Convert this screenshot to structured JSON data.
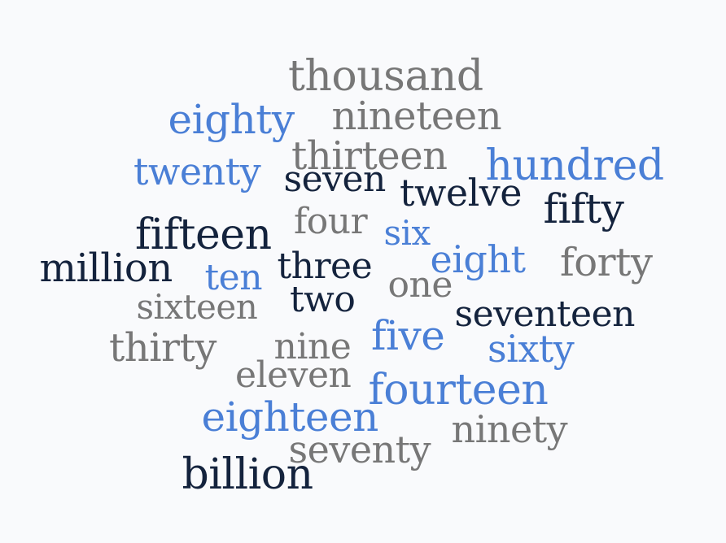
{
  "colors": {
    "gray": "#777777",
    "blue": "#4a7fd6",
    "navy": "#14233d",
    "background": "#f9fafc"
  },
  "words": [
    {
      "text": "thousand",
      "color": "gray"
    },
    {
      "text": "eighty",
      "color": "blue"
    },
    {
      "text": "nineteen",
      "color": "gray"
    },
    {
      "text": "thirteen",
      "color": "gray"
    },
    {
      "text": "hundred",
      "color": "blue"
    },
    {
      "text": "twenty",
      "color": "blue"
    },
    {
      "text": "seven",
      "color": "navy"
    },
    {
      "text": "twelve",
      "color": "navy"
    },
    {
      "text": "fifty",
      "color": "navy"
    },
    {
      "text": "four",
      "color": "gray"
    },
    {
      "text": "six",
      "color": "blue"
    },
    {
      "text": "fifteen",
      "color": "navy"
    },
    {
      "text": "million",
      "color": "navy"
    },
    {
      "text": "ten",
      "color": "blue"
    },
    {
      "text": "three",
      "color": "navy"
    },
    {
      "text": "eight",
      "color": "blue"
    },
    {
      "text": "forty",
      "color": "gray"
    },
    {
      "text": "one",
      "color": "gray"
    },
    {
      "text": "sixteen",
      "color": "gray"
    },
    {
      "text": "two",
      "color": "navy"
    },
    {
      "text": "seventeen",
      "color": "navy"
    },
    {
      "text": "thirty",
      "color": "gray"
    },
    {
      "text": "nine",
      "color": "gray"
    },
    {
      "text": "five",
      "color": "blue"
    },
    {
      "text": "sixty",
      "color": "blue"
    },
    {
      "text": "eleven",
      "color": "gray"
    },
    {
      "text": "fourteen",
      "color": "blue"
    },
    {
      "text": "eighteen",
      "color": "blue"
    },
    {
      "text": "ninety",
      "color": "gray"
    },
    {
      "text": "seventy",
      "color": "gray"
    },
    {
      "text": "billion",
      "color": "navy"
    }
  ]
}
